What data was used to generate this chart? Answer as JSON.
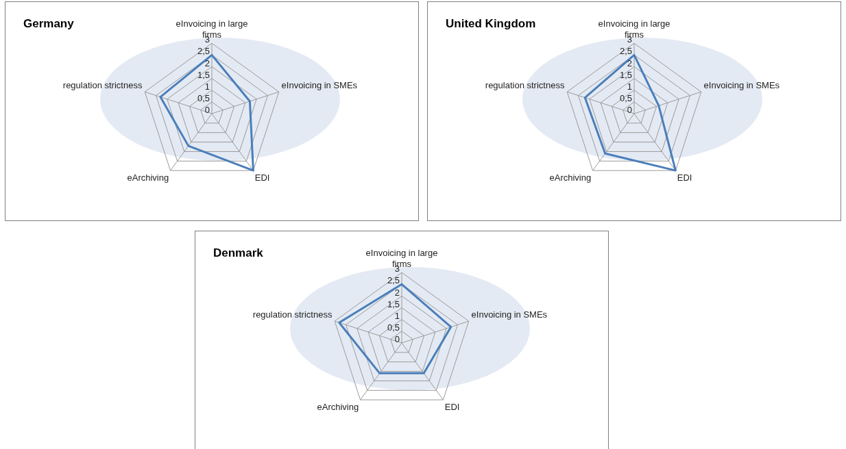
{
  "chart_data": [
    {
      "type": "radar",
      "title": "Germany",
      "categories": [
        "eInvoicing in large firms",
        "eInvoicing in SMEs",
        "EDI",
        "eArchiving",
        "regulation strictness"
      ],
      "series": [
        {
          "color": "#4a7ebb",
          "values": [
            2.5,
            1.7,
            3,
            1.7,
            2.3
          ]
        }
      ],
      "ylim": [
        0,
        3
      ],
      "yticks": [
        0,
        {
          "value": 0.5,
          "label": "0,5"
        },
        1,
        {
          "value": 1.5,
          "label": "1,5"
        },
        2,
        {
          "value": 2.5,
          "label": "2,5"
        },
        3
      ],
      "grid": true
    },
    {
      "type": "radar",
      "title": "United Kingdom",
      "categories": [
        "eInvoicing in large firms",
        "eInvoicing in SMEs",
        "EDI",
        "eArchiving",
        "regulation strictness"
      ],
      "series": [
        {
          "color": "#4a7ebb",
          "values": [
            2.5,
            1.1,
            3,
            2.1,
            2.2
          ]
        }
      ],
      "ylim": [
        0,
        3
      ],
      "yticks": [
        0,
        {
          "value": 0.5,
          "label": "0,5"
        },
        1,
        {
          "value": 1.5,
          "label": "1,5"
        },
        2,
        {
          "value": 2.5,
          "label": "2,5"
        },
        3
      ],
      "grid": true
    },
    {
      "type": "radar",
      "title": "Denmark",
      "categories": [
        "eInvoicing in large firms",
        "eInvoicing in SMEs",
        "EDI",
        "eArchiving",
        "regulation strictness"
      ],
      "series": [
        {
          "color": "#4a7ebb",
          "values": [
            2.5,
            2.2,
            1.6,
            1.6,
            2.8
          ]
        }
      ],
      "ylim": [
        0,
        3
      ],
      "yticks": [
        0,
        {
          "value": 0.5,
          "label": "0,5"
        },
        1,
        {
          "value": 1.5,
          "label": "1,5"
        },
        2,
        {
          "value": 2.5,
          "label": "2,5"
        },
        3
      ],
      "grid": true
    }
  ]
}
